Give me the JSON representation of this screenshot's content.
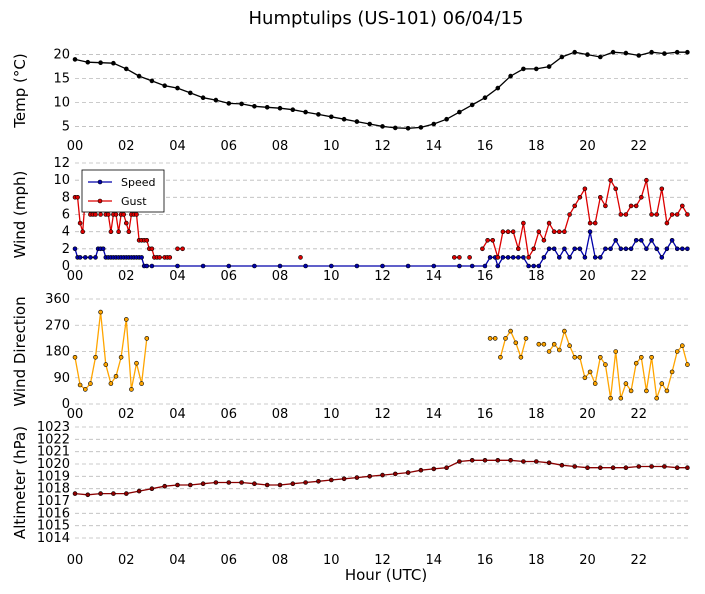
{
  "figure": {
    "title": "Humptulips (US-101) 06/04/15",
    "xlabel": "Hour (UTC)"
  },
  "chart_data": [
    {
      "type": "line",
      "ylabel": "Temp (°C)",
      "ylim": [
        3,
        22
      ],
      "yticks": [
        "5",
        "10",
        "15",
        "20"
      ],
      "xlim": [
        0,
        24
      ],
      "xticks": [
        "00",
        "02",
        "04",
        "06",
        "08",
        "10",
        "12",
        "14",
        "16",
        "18",
        "20",
        "22"
      ],
      "grid": "horizontal dashed",
      "series": [
        {
          "color": "#000000",
          "x": [
            0,
            0.5,
            1,
            1.5,
            2,
            2.5,
            3,
            3.5,
            4,
            4.5,
            5,
            5.5,
            6,
            6.5,
            7,
            7.5,
            8,
            8.5,
            9,
            9.5,
            10,
            10.5,
            11,
            11.5,
            12,
            12.5,
            13,
            13.5,
            14,
            14.5,
            15,
            15.5,
            16,
            16.5,
            17,
            17.5,
            18,
            18.5,
            19,
            19.5,
            20,
            20.5,
            21,
            21.5,
            22,
            22.5,
            23,
            23.5,
            23.9
          ],
          "y": [
            19,
            18.4,
            18.3,
            18.2,
            17,
            15.5,
            14.5,
            13.5,
            13,
            12,
            11,
            10.5,
            9.8,
            9.7,
            9.2,
            9,
            8.8,
            8.5,
            8,
            7.5,
            7,
            6.5,
            6,
            5.5,
            5,
            4.7,
            4.6,
            4.8,
            5.5,
            6.5,
            8,
            9.5,
            11,
            13,
            15.5,
            17,
            17,
            17.5,
            19.5,
            20.5,
            20,
            19.5,
            20.5,
            20.3,
            19.8,
            20.5,
            20.2,
            20.5,
            20.5
          ]
        }
      ]
    },
    {
      "type": "line",
      "ylabel": "Wind (mph)",
      "ylim": [
        0,
        12
      ],
      "yticks": [
        "0",
        "2",
        "4",
        "6",
        "8",
        "10",
        "12"
      ],
      "xlim": [
        0,
        24
      ],
      "xticks": [
        "00",
        "02",
        "04",
        "06",
        "08",
        "10",
        "12",
        "14",
        "16",
        "18",
        "20",
        "22"
      ],
      "legend": "top-left",
      "series": [
        {
          "name": "Speed",
          "color": "#0000aa",
          "x": [
            0,
            0.1,
            0.2,
            0.4,
            0.6,
            0.8,
            0.9,
            1.0,
            1.1,
            1.2,
            1.3,
            1.4,
            1.5,
            1.6,
            1.7,
            1.8,
            1.9,
            2.0,
            2.1,
            2.2,
            2.3,
            2.4,
            2.5,
            2.6,
            2.7,
            2.8,
            3.0,
            4.0,
            5.0,
            6.0,
            7.0,
            8.0,
            9.0,
            10.0,
            11.0,
            12.0,
            13.0,
            14.0,
            15.0,
            15.5,
            16.0,
            16.2,
            16.4,
            16.5,
            16.7,
            16.9,
            17.1,
            17.3,
            17.5,
            17.7,
            17.9,
            18.1,
            18.3,
            18.5,
            18.7,
            18.9,
            19.1,
            19.3,
            19.5,
            19.7,
            19.9,
            20.1,
            20.3,
            20.5,
            20.7,
            20.9,
            21.1,
            21.3,
            21.5,
            21.7,
            21.9,
            22.1,
            22.3,
            22.5,
            22.7,
            22.9,
            23.1,
            23.3,
            23.5,
            23.7,
            23.9
          ],
          "y": [
            2,
            1,
            1,
            1,
            1,
            1,
            2,
            2,
            2,
            1,
            1,
            1,
            1,
            1,
            1,
            1,
            1,
            1,
            1,
            1,
            1,
            1,
            1,
            1,
            0,
            0,
            0,
            0,
            0,
            0,
            0,
            0,
            0,
            0,
            0,
            0,
            0,
            0,
            0,
            0,
            0,
            1,
            1,
            0,
            1,
            1,
            1,
            1,
            1,
            0,
            0,
            0,
            1,
            2,
            2,
            1,
            2,
            1,
            2,
            2,
            1,
            4,
            1,
            1,
            2,
            2,
            3,
            2,
            2,
            2,
            3,
            3,
            2,
            3,
            2,
            1,
            2,
            3,
            2,
            2,
            2
          ],
          "note": "drawn as connected dots"
        },
        {
          "name": "Gust",
          "color": "#dd0000",
          "segments": [
            {
              "x": [
                0,
                0.1,
                0.2,
                0.3,
                0.4,
                0.5,
                0.6,
                0.7,
                0.8,
                0.9,
                1.0,
                1.1,
                1.2,
                1.3,
                1.4,
                1.5,
                1.6,
                1.7,
                1.8,
                1.9,
                2.0,
                2.1,
                2.2,
                2.3,
                2.4,
                2.5,
                2.6,
                2.7,
                2.8,
                2.9,
                3.0,
                3.1,
                3.2,
                3.3,
                3.5,
                3.6,
                3.7
              ],
              "y": [
                8,
                8,
                5,
                4,
                8,
                7,
                6,
                6,
                6,
                8,
                6,
                8,
                6,
                6,
                4,
                6,
                6,
                4,
                6,
                6,
                5,
                4,
                6,
                6,
                6,
                3,
                3,
                3,
                3,
                2,
                2,
                1,
                1,
                1,
                1,
                1,
                1
              ]
            },
            {
              "x": [
                4.0,
                4.2
              ],
              "y": [
                2,
                2
              ]
            },
            {
              "x": [
                8.8
              ],
              "y": [
                1
              ]
            },
            {
              "x": [
                14.8,
                15.0
              ],
              "y": [
                1,
                1
              ]
            },
            {
              "x": [
                15.4
              ],
              "y": [
                1
              ]
            },
            {
              "x": [
                15.9,
                16.1,
                16.3,
                16.5,
                16.7,
                16.9,
                17.1,
                17.3,
                17.5,
                17.7,
                17.9,
                18.1,
                18.3,
                18.5,
                18.7,
                18.9,
                19.1,
                19.3,
                19.5,
                19.7,
                19.9,
                20.1,
                20.3,
                20.5,
                20.7,
                20.9,
                21.1,
                21.3,
                21.5,
                21.7,
                21.9,
                22.1,
                22.3,
                22.5,
                22.7,
                22.9,
                23.1,
                23.3,
                23.5,
                23.7,
                23.9
              ],
              "y": [
                2,
                3,
                3,
                1,
                4,
                4,
                4,
                2,
                5,
                1,
                2,
                4,
                3,
                5,
                4,
                4,
                4,
                6,
                7,
                8,
                9,
                5,
                5,
                8,
                7,
                10,
                9,
                6,
                6,
                7,
                7,
                8,
                10,
                6,
                6,
                9,
                5,
                6,
                6,
                7,
                6
              ]
            }
          ]
        }
      ]
    },
    {
      "type": "scatter",
      "ylabel": "Wind Direction",
      "ylim": [
        0,
        360
      ],
      "yticks": [
        "0",
        "90",
        "180",
        "270",
        "360"
      ],
      "xlim": [
        0,
        24
      ],
      "xticks": [
        "00",
        "02",
        "04",
        "06",
        "08",
        "10",
        "12",
        "14",
        "16",
        "18",
        "20",
        "22"
      ],
      "series": [
        {
          "color": "#ffa500",
          "segments": [
            {
              "x": [
                0,
                0.2,
                0.4,
                0.6,
                0.8,
                1.0,
                1.2,
                1.4,
                1.6,
                1.8,
                2.0,
                2.2,
                2.4,
                2.6,
                2.8
              ],
              "y": [
                160,
                65,
                50,
                70,
                160,
                315,
                135,
                70,
                95,
                160,
                290,
                50,
                140,
                70,
                225
              ]
            },
            {
              "x": [
                16.2,
                16.4
              ],
              "y": [
                225,
                225
              ]
            },
            {
              "x": [
                16.6,
                16.8,
                17.0,
                17.2,
                17.4,
                17.6
              ],
              "y": [
                160,
                225,
                250,
                210,
                160,
                225
              ]
            },
            {
              "x": [
                18.1,
                18.3
              ],
              "y": [
                205,
                205
              ]
            },
            {
              "x": [
                18.5,
                18.7,
                18.9,
                19.1,
                19.3,
                19.5,
                19.7,
                19.9,
                20.1,
                20.3,
                20.5,
                20.7,
                20.9,
                21.1,
                21.3,
                21.5,
                21.7,
                21.9,
                22.1,
                22.3,
                22.5,
                22.7,
                22.9,
                23.1,
                23.3,
                23.5,
                23.7,
                23.9
              ],
              "y": [
                180,
                205,
                185,
                250,
                200,
                160,
                160,
                90,
                110,
                70,
                160,
                135,
                20,
                180,
                20,
                70,
                45,
                140,
                160,
                45,
                160,
                20,
                70,
                45,
                110,
                180,
                200,
                135
              ]
            }
          ]
        }
      ]
    },
    {
      "type": "line",
      "ylabel": "Altimeter (hPa)",
      "ylim": [
        1014,
        1023
      ],
      "yticks": [
        "1014",
        "1015",
        "1016",
        "1017",
        "1018",
        "1019",
        "1020",
        "1021",
        "1022",
        "1023"
      ],
      "xlim": [
        0,
        24
      ],
      "xticks": [
        "00",
        "02",
        "04",
        "06",
        "08",
        "10",
        "12",
        "14",
        "16",
        "18",
        "20",
        "22"
      ],
      "xticks_bottom": [
        "00",
        "02",
        "04",
        "06",
        "08",
        "10",
        "12",
        "14",
        "16",
        "18",
        "20",
        "22"
      ],
      "series": [
        {
          "color": "#8b0000",
          "x": [
            0,
            0.5,
            1,
            1.5,
            2,
            2.5,
            3,
            3.5,
            4,
            4.5,
            5,
            5.5,
            6,
            6.5,
            7,
            7.5,
            8,
            8.5,
            9,
            9.5,
            10,
            10.5,
            11,
            11.5,
            12,
            12.5,
            13,
            13.5,
            14,
            14.5,
            15,
            15.5,
            16,
            16.5,
            17,
            17.5,
            18,
            18.5,
            19,
            19.5,
            20,
            20.5,
            21,
            21.5,
            22,
            22.5,
            23,
            23.5,
            23.9
          ],
          "y": [
            1017.6,
            1017.5,
            1017.6,
            1017.6,
            1017.6,
            1017.8,
            1018.0,
            1018.2,
            1018.3,
            1018.3,
            1018.4,
            1018.5,
            1018.5,
            1018.5,
            1018.4,
            1018.3,
            1018.3,
            1018.4,
            1018.5,
            1018.6,
            1018.7,
            1018.8,
            1018.9,
            1019.0,
            1019.1,
            1019.2,
            1019.3,
            1019.5,
            1019.6,
            1019.7,
            1020.2,
            1020.3,
            1020.3,
            1020.3,
            1020.3,
            1020.2,
            1020.2,
            1020.1,
            1019.9,
            1019.8,
            1019.7,
            1019.7,
            1019.7,
            1019.7,
            1019.8,
            1019.8,
            1019.8,
            1019.7,
            1019.7
          ]
        }
      ]
    }
  ]
}
